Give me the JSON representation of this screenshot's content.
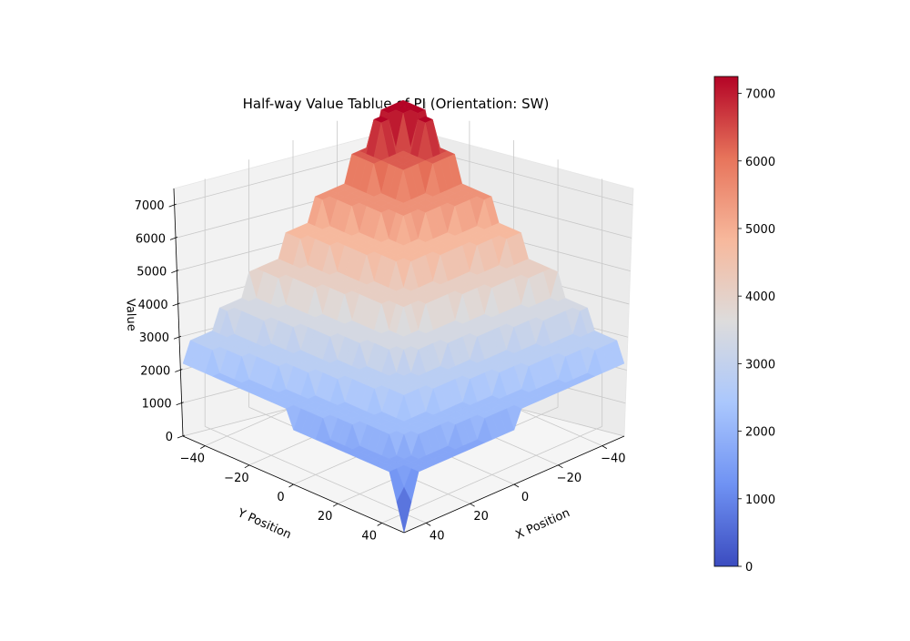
{
  "chart_data": {
    "type": "surface3d",
    "title": "Half-way Value Tablue of PI (Orientation: SW)",
    "xlabel": "X Position",
    "ylabel": "Y Position",
    "zlabel": "Value",
    "colormap": "coolwarm",
    "colormap_stops": [
      "#3b4cc0",
      "#6f92f3",
      "#aac7fd",
      "#dddcdc",
      "#f7b89c",
      "#e7745b",
      "#b40426"
    ],
    "grid": true,
    "xlim": [
      -50,
      50
    ],
    "ylim": [
      -50,
      50
    ],
    "zlim": [
      0,
      7500
    ],
    "x_ticks": [
      {
        "value": -40,
        "label": "−40"
      },
      {
        "value": -20,
        "label": "−20"
      },
      {
        "value": 0,
        "label": "0"
      },
      {
        "value": 20,
        "label": "20"
      },
      {
        "value": 40,
        "label": "40"
      }
    ],
    "y_ticks": [
      {
        "value": 40,
        "label": "40"
      },
      {
        "value": 20,
        "label": "20"
      },
      {
        "value": 0,
        "label": "0"
      },
      {
        "value": -20,
        "label": "−20"
      },
      {
        "value": -40,
        "label": "−40"
      }
    ],
    "z_ticks": [
      {
        "value": 0,
        "label": "0"
      },
      {
        "value": 1000,
        "label": "1000"
      },
      {
        "value": 2000,
        "label": "2000"
      },
      {
        "value": 3000,
        "label": "3000"
      },
      {
        "value": 4000,
        "label": "4000"
      },
      {
        "value": 5000,
        "label": "5000"
      },
      {
        "value": 6000,
        "label": "6000"
      },
      {
        "value": 7000,
        "label": "7000"
      }
    ],
    "colorbar": {
      "min": 0,
      "max": 7250,
      "ticks": [
        {
          "value": 0,
          "label": "0"
        },
        {
          "value": 1000,
          "label": "1000"
        },
        {
          "value": 2000,
          "label": "2000"
        },
        {
          "value": 3000,
          "label": "3000"
        },
        {
          "value": 4000,
          "label": "4000"
        },
        {
          "value": 5000,
          "label": "5000"
        },
        {
          "value": 6000,
          "label": "6000"
        },
        {
          "value": 7000,
          "label": "7000"
        }
      ]
    },
    "surface": {
      "description": "Stepped pyramid-like surface; values rise toward the -X,-Y corner region (center of grid) in terraced steps, two peaks near the top, and a narrow spike down to ~0 at the front corner.",
      "corner_values": {
        "x_min_y_max": 1650,
        "x_max_y_min": 1650,
        "x_min_y_min": 7250,
        "x_max_y_max": 0
      },
      "terrace_levels": [
        1650,
        2200,
        2800,
        3400,
        4100,
        4800,
        5500,
        6300,
        7250
      ],
      "peaks": [
        {
          "x": -35,
          "y": -45,
          "z": 7250
        },
        {
          "x": -45,
          "y": -35,
          "z": 7250
        }
      ],
      "min_spike": {
        "x": 50,
        "y": 50,
        "z": 0
      }
    }
  }
}
